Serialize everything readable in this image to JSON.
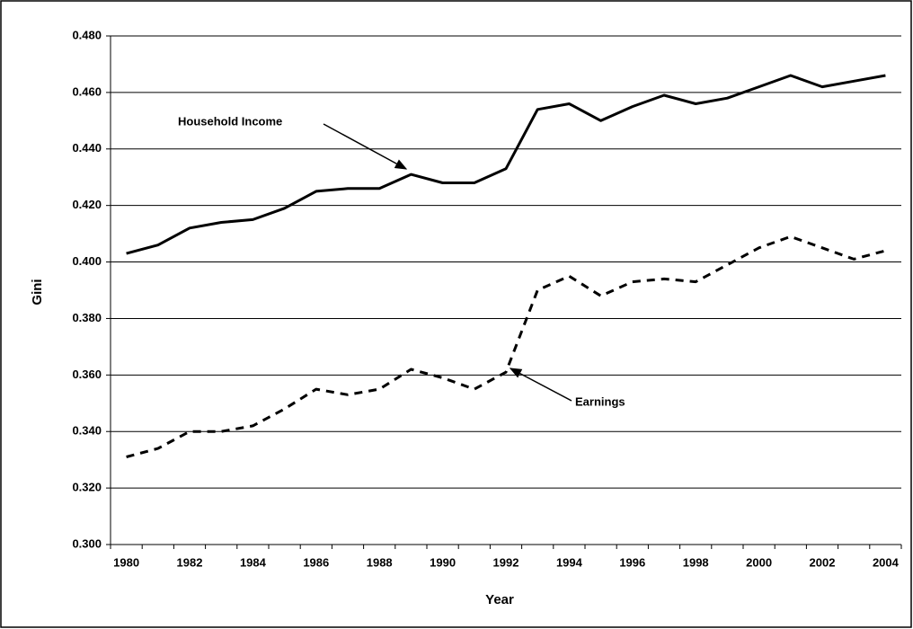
{
  "chart_data": {
    "type": "line",
    "x_label": "Year",
    "y_label": "Gini",
    "categories": [
      "1980",
      null,
      "1982",
      null,
      "1984",
      null,
      "1986",
      null,
      "1988",
      null,
      "1990",
      null,
      "1992",
      null,
      "1994",
      null,
      "1996",
      null,
      "1998",
      null,
      "2000",
      null,
      "2002",
      null,
      "2004"
    ],
    "series": [
      {
        "name": "Household Income",
        "color": "#000000",
        "line_style": "solid",
        "values": [
          0.403,
          0.406,
          0.412,
          0.414,
          0.415,
          0.419,
          0.425,
          0.426,
          0.426,
          0.431,
          0.428,
          0.428,
          0.433,
          0.454,
          0.456,
          0.45,
          0.455,
          0.459,
          0.456,
          0.458,
          0.462,
          0.466,
          0.462,
          0.464,
          0.466
        ]
      },
      {
        "name": "Earnings",
        "color": "#000000",
        "line_style": "dashed",
        "values": [
          0.331,
          0.334,
          0.34,
          0.34,
          0.342,
          0.348,
          0.355,
          0.353,
          0.355,
          0.362,
          0.359,
          0.355,
          0.361,
          0.39,
          0.395,
          0.388,
          0.393,
          0.394,
          0.393,
          0.399,
          0.405,
          0.409,
          0.405,
          0.401,
          0.404
        ]
      }
    ],
    "ylim": [
      0.3,
      0.48
    ],
    "yticks": [
      {
        "value": 0.3,
        "label": "0.300"
      },
      {
        "value": 0.32,
        "label": "0.320"
      },
      {
        "value": 0.34,
        "label": "0.340"
      },
      {
        "value": 0.36,
        "label": "0.360"
      },
      {
        "value": 0.38,
        "label": "0.380"
      },
      {
        "value": 0.4,
        "label": "0.400"
      },
      {
        "value": 0.42,
        "label": "0.420"
      },
      {
        "value": 0.44,
        "label": "0.440"
      },
      {
        "value": 0.46,
        "label": "0.460"
      },
      {
        "value": 0.48,
        "label": "0.480"
      }
    ],
    "grid": true
  }
}
